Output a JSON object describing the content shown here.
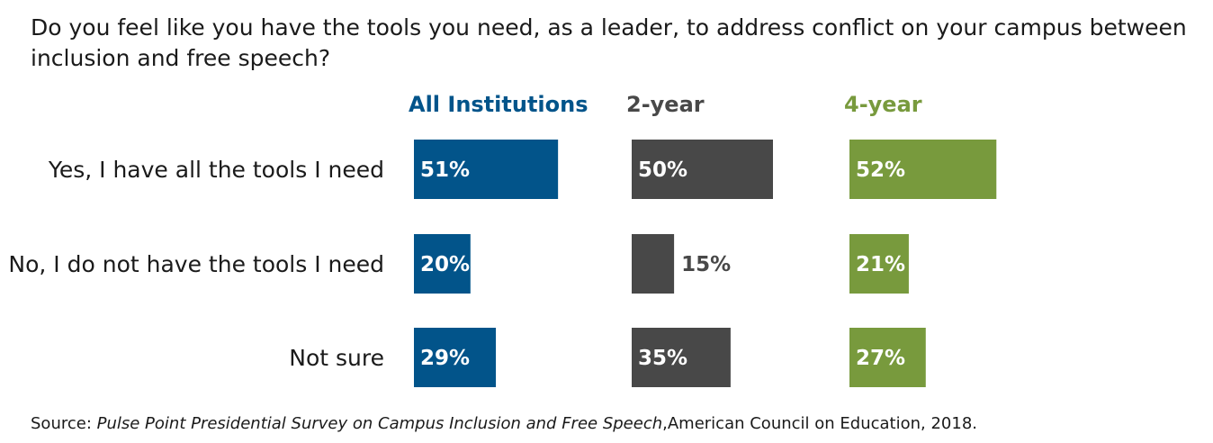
{
  "chart_data": {
    "type": "bar",
    "orientation": "horizontal",
    "title": "Do you feel like you have the tools you need, as a leader, to address conflict on your campus between inclusion and free speech?",
    "categories": [
      "Yes, I have all the tools I need",
      "No, I do not have the tools I need",
      "Not sure"
    ],
    "series": [
      {
        "name": "All Institutions",
        "color": "#02548a",
        "values": [
          51,
          20,
          29
        ],
        "labels": [
          "51%",
          "20%",
          "29%"
        ]
      },
      {
        "name": "2-year",
        "color": "#484848",
        "values": [
          50,
          15,
          35
        ],
        "labels": [
          "50%",
          "15%",
          "35%"
        ]
      },
      {
        "name": "4-year",
        "color": "#789a3d",
        "values": [
          52,
          21,
          27
        ],
        "labels": [
          "52%",
          "21%",
          "27%"
        ]
      }
    ],
    "xlim": [
      0,
      100
    ],
    "grid": false,
    "xlabel": "",
    "ylabel": ""
  },
  "source": {
    "prefix": "Source: ",
    "title": "Pulse Point Presidential Survey on Campus Inclusion and Free Speech",
    "suffix": ",American Council on Education, 2018."
  }
}
